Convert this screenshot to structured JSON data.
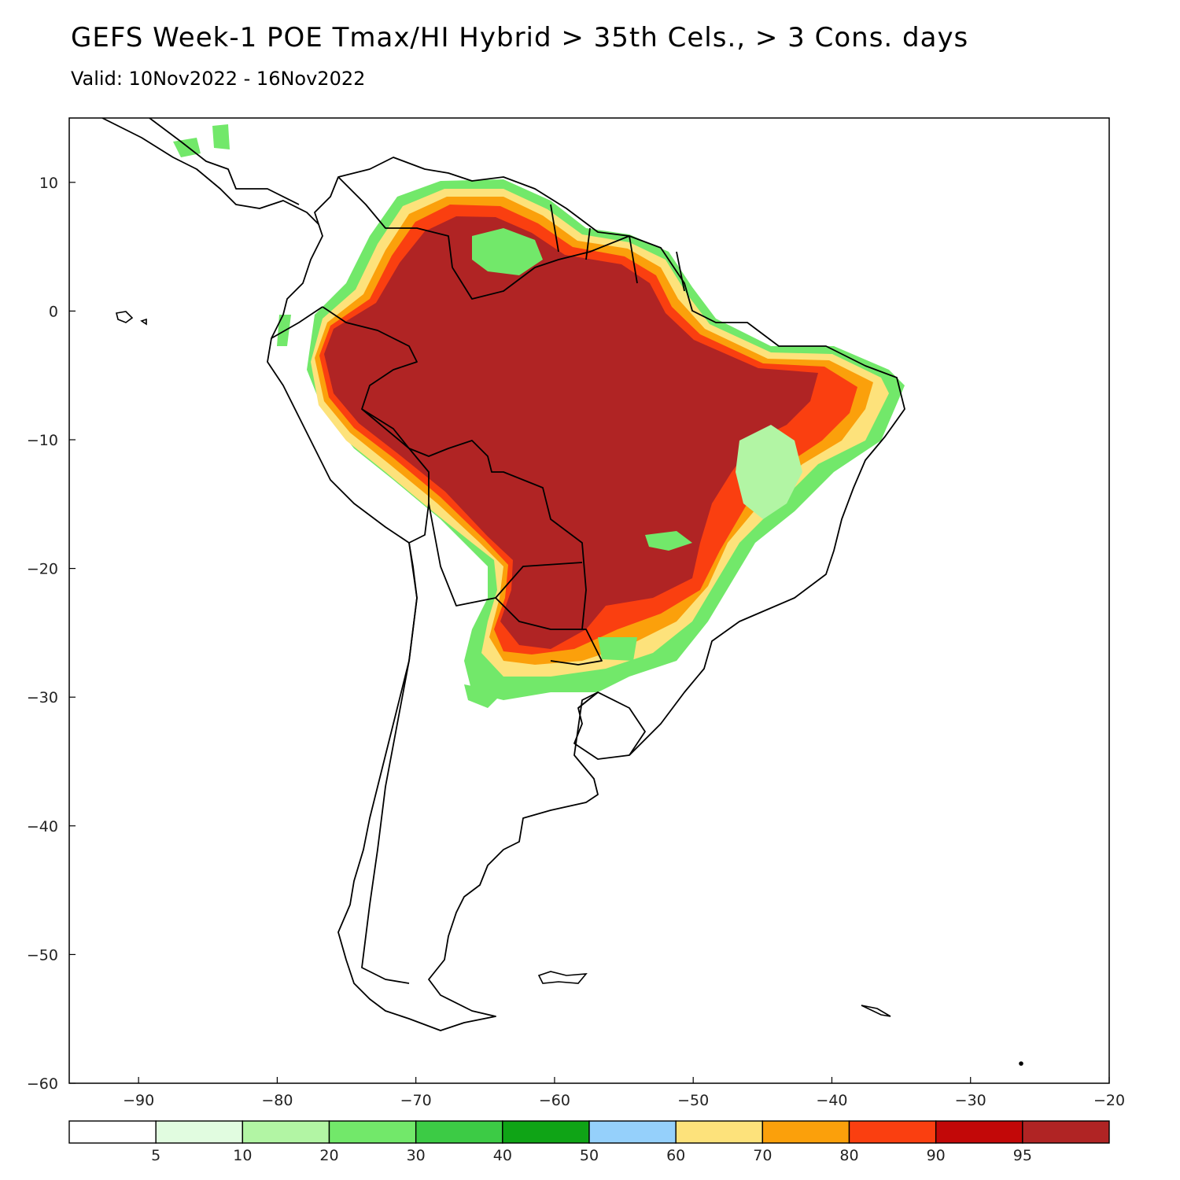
{
  "title": "GEFS Week-1 POE Tmax/HI Hybrid > 35th Cels., > 3 Cons. days",
  "subtitle": "Valid: 10Nov2022 - 16Nov2022",
  "map": {
    "lon_range": [
      -95,
      -20
    ],
    "lat_range": [
      -60,
      15
    ],
    "lon_ticks": [
      -90,
      -80,
      -70,
      -60,
      -50,
      -40,
      -30,
      -20
    ],
    "lat_ticks": [
      10,
      0,
      -10,
      -20,
      -30,
      -40,
      -50,
      -60
    ],
    "lon_tick_labels": [
      "−90",
      "−80",
      "−70",
      "−60",
      "−50",
      "−40",
      "−30",
      "−20"
    ],
    "lat_tick_labels": [
      "10",
      "0",
      "−10",
      "−20",
      "−30",
      "−40",
      "−50",
      "−60"
    ]
  },
  "colorbar": {
    "colors": [
      "#ffffff",
      "#e1fce0",
      "#b2f5a4",
      "#72e86a",
      "#3ccb45",
      "#0fa416",
      "#95d0fb",
      "#fde27b",
      "#fba00b",
      "#fa3f10",
      "#c20808",
      "#b02424"
    ],
    "labels": [
      "5",
      "10",
      "20",
      "30",
      "40",
      "50",
      "60",
      "70",
      "80",
      "90",
      "95"
    ]
  }
}
